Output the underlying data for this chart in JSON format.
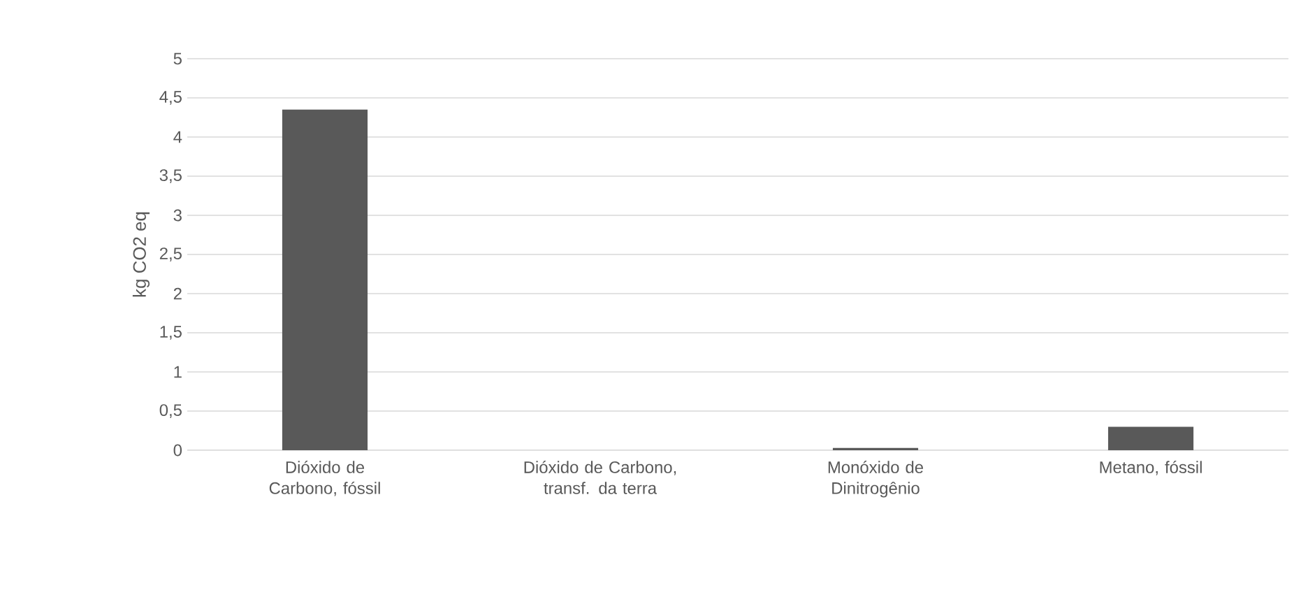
{
  "chart_data": {
    "type": "bar",
    "ylabel": "kg CO2 eq",
    "categories": [
      "Dióxido de Carbono, fóssil",
      "Dióxido de Carbono, transf. da terra",
      "Monóxido de Dinitrogênio",
      "Metano, fóssil"
    ],
    "values": [
      4.35,
      0,
      0.03,
      0.3
    ],
    "color": "#595959",
    "ylim": [
      0,
      5
    ],
    "yticks": [
      0,
      {
        "value": 0.5,
        "label": "0,5"
      },
      1,
      {
        "value": 1.5,
        "label": "1,5"
      },
      2,
      {
        "value": 2.5,
        "label": "2,5"
      },
      3,
      {
        "value": 3.5,
        "label": "3,5"
      },
      4,
      {
        "value": 4.5,
        "label": "4,5"
      },
      5
    ],
    "grid": "y"
  }
}
